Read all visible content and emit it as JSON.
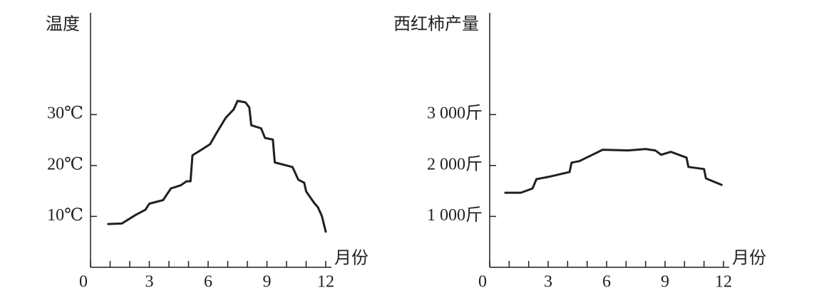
{
  "chart_data": [
    {
      "type": "line",
      "ylabel": "温度",
      "xlabel": "月份",
      "color": "#231f20",
      "x": [
        0.9,
        1.6,
        2.3,
        2.8,
        3,
        3.7,
        4.1,
        4.6,
        4.9,
        5.1,
        5.2,
        5.7,
        6.1,
        6.4,
        6.9,
        7.3,
        7.5,
        7.9,
        8.1,
        8.2,
        8.7,
        8.9,
        9.3,
        9.4,
        10.3,
        10.6,
        10.9,
        11,
        11.4,
        11.6,
        11.8,
        12
      ],
      "values": [
        8.5,
        8.6,
        10.3,
        11.3,
        12.5,
        13.2,
        15.5,
        16.1,
        16.9,
        16.9,
        22,
        23.2,
        24.2,
        26.2,
        29.4,
        31,
        32.7,
        32.4,
        31.4,
        27.9,
        27.3,
        25.4,
        25.1,
        20.6,
        19.7,
        17.2,
        16.6,
        14.9,
        12.7,
        11.8,
        10.1,
        7
      ],
      "xlim": [
        0,
        12
      ],
      "ylim": [
        0,
        50
      ],
      "xticks": [
        0,
        3,
        6,
        9,
        12
      ],
      "xminorticks": [
        1,
        2,
        4,
        5,
        7,
        8,
        10,
        11
      ],
      "yticks": [
        {
          "value": 10,
          "label": "10℃"
        },
        {
          "value": 20,
          "label": "20℃"
        },
        {
          "value": 30,
          "label": "30℃"
        }
      ]
    },
    {
      "type": "line",
      "ylabel": "西红柿产量",
      "xlabel": "月份",
      "color": "#231f20",
      "x": [
        0.8,
        1.6,
        2.2,
        2.4,
        3,
        4.1,
        4.2,
        4.6,
        5.2,
        5.8,
        7.1,
        8,
        8.5,
        8.8,
        9.3,
        10.1,
        10.2,
        11,
        11.1,
        11.9
      ],
      "values": [
        1465,
        1465,
        1549,
        1732,
        1775,
        1873,
        2056,
        2085,
        2197,
        2310,
        2296,
        2324,
        2296,
        2211,
        2268,
        2155,
        1972,
        1930,
        1746,
        1620
      ],
      "xlim": [
        0,
        12
      ],
      "ylim": [
        0,
        5000
      ],
      "xticks": [
        0,
        3,
        6,
        9,
        12
      ],
      "xminorticks": [
        1,
        2,
        4,
        5,
        7,
        8,
        10,
        11
      ],
      "yticks": [
        {
          "value": 1000,
          "label": "1 000斤"
        },
        {
          "value": 2000,
          "label": "2 000斤"
        },
        {
          "value": 3000,
          "label": "3 000斤"
        }
      ]
    }
  ]
}
